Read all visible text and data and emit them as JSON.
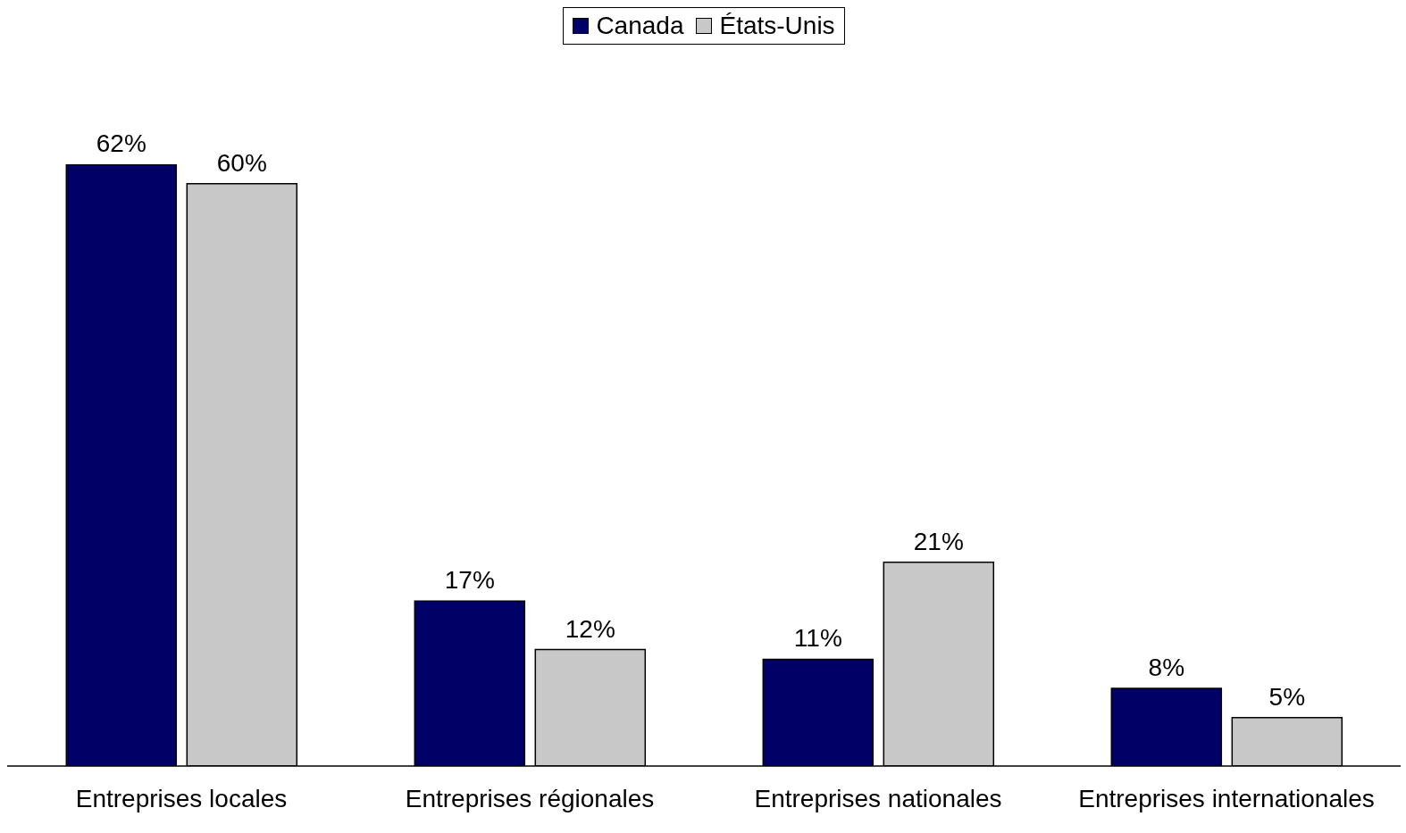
{
  "chart_data": {
    "type": "bar",
    "categories": [
      "Entreprises locales",
      "Entreprises régionales",
      "Entreprises nationales",
      "Entreprises internationales"
    ],
    "series": [
      {
        "name": "Canada",
        "color": "#000066",
        "values": [
          62,
          17,
          11,
          8
        ],
        "value_labels": [
          "62%",
          "17%",
          "11%",
          "8%"
        ]
      },
      {
        "name": "États-Unis",
        "color": "#c8c8c8",
        "values": [
          60,
          12,
          21,
          5
        ],
        "value_labels": [
          "60%",
          "12%",
          "21%",
          "5%"
        ]
      }
    ],
    "legend": "top"
  }
}
